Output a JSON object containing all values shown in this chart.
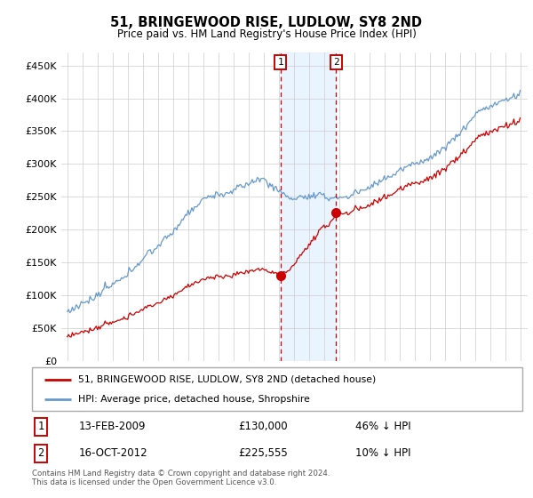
{
  "title": "51, BRINGEWOOD RISE, LUDLOW, SY8 2ND",
  "subtitle": "Price paid vs. HM Land Registry's House Price Index (HPI)",
  "hpi_label": "HPI: Average price, detached house, Shropshire",
  "property_label": "51, BRINGEWOOD RISE, LUDLOW, SY8 2ND (detached house)",
  "transaction1_date": "13-FEB-2009",
  "transaction1_price": 130000,
  "transaction1_price_str": "£130,000",
  "transaction1_hpi": "46% ↓ HPI",
  "transaction2_date": "16-OCT-2012",
  "transaction2_price": 225555,
  "transaction2_price_str": "£225,555",
  "transaction2_hpi": "10% ↓ HPI",
  "footer": "Contains HM Land Registry data © Crown copyright and database right 2024.\nThis data is licensed under the Open Government Licence v3.0.",
  "ylim": [
    0,
    470000
  ],
  "yticks": [
    0,
    50000,
    100000,
    150000,
    200000,
    250000,
    300000,
    350000,
    400000,
    450000
  ],
  "background_color": "#ffffff",
  "grid_color": "#cccccc",
  "hpi_line_color": "#6699cc",
  "property_line_color": "#cc0000",
  "transaction1_x": 2009.12,
  "transaction2_x": 2012.79,
  "shade_color": "#ddeeff",
  "n_months": 361
}
